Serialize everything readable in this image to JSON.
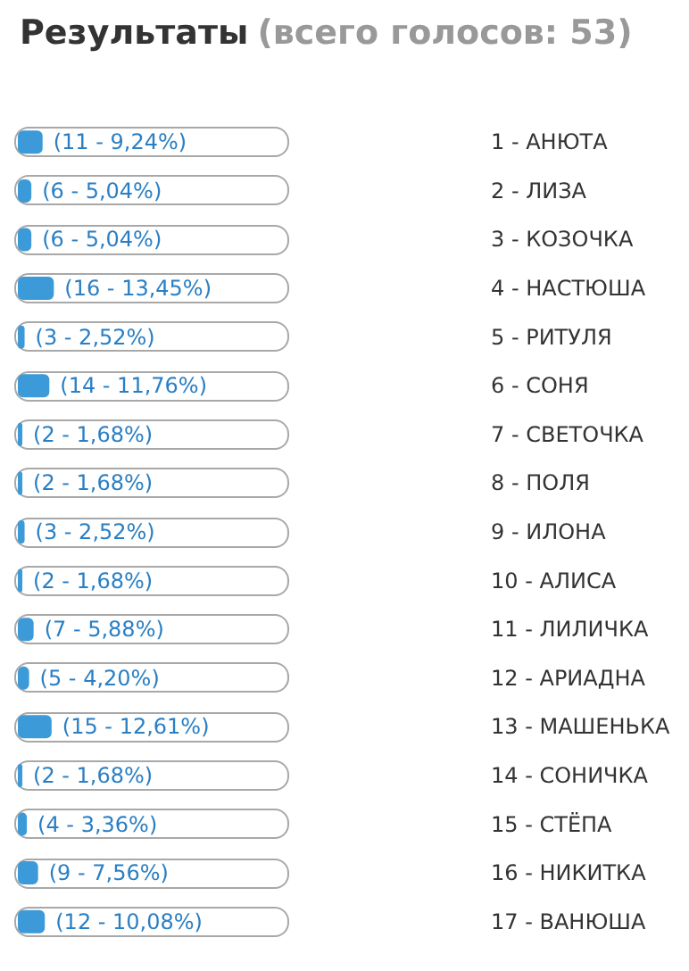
{
  "chart_data": {
    "type": "bar",
    "orientation": "horizontal",
    "title": "Результаты",
    "subtitle": "(всего голосов: 53)",
    "categories": [
      "1 - АНЮТА",
      "2 - ЛИЗА",
      "3 - КОЗОЧКА",
      "4 - НАСТЮША",
      "5 - РИТУЛЯ",
      "6 - СОНЯ",
      "7 - СВЕТОЧКА",
      "8 - ПОЛЯ",
      "9 - ИЛОНА",
      "10 - АЛИСА",
      "11 - ЛИЛИЧКА",
      "12 - АРИАДНА",
      "13 - МАШЕНЬКА",
      "14 - СОНИЧКА",
      "15 - СТЁПА",
      "16 - НИКИТКА",
      "17 - ВАНЮША"
    ],
    "values": [
      11,
      6,
      6,
      16,
      3,
      14,
      2,
      2,
      3,
      2,
      7,
      5,
      15,
      2,
      4,
      9,
      12
    ],
    "value_labels": [
      "(11 - 9,24%)",
      "(6 - 5,04%)",
      "(6 - 5,04%)",
      "(16 - 13,45%)",
      "(3 - 2,52%)",
      "(14 - 11,76%)",
      "(2 - 1,68%)",
      "(2 - 1,68%)",
      "(3 - 2,52%)",
      "(2 - 1,68%)",
      "(7 - 5,88%)",
      "(5 - 4,20%)",
      "(15 - 12,61%)",
      "(2 - 1,68%)",
      "(4 - 3,36%)",
      "(9 - 7,56%)",
      "(12 - 10,08%)"
    ],
    "color": "#3d9ad9",
    "xlim": [
      0,
      119
    ],
    "tick_labels": "y"
  }
}
